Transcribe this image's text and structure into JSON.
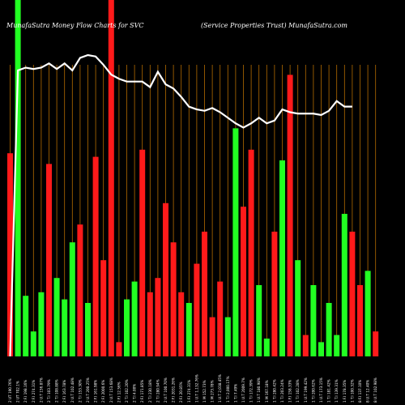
{
  "chart_data": {
    "type": "bar",
    "title_left": "MunafaSutra  Money Flow  Charts for SVC",
    "title_right": "(Service   Properties Trust) MunafaSutra.com",
    "colors": {
      "background": "#000000",
      "up": "#22ff22",
      "down": "#ff1a1a",
      "grid": "#b36b00",
      "line": "#ffffff"
    },
    "ylim": [
      0,
      100
    ],
    "values": [
      57,
      100,
      17,
      7,
      18,
      54,
      22,
      16,
      32,
      37,
      15,
      56,
      27,
      100,
      4,
      16,
      21,
      58,
      18,
      22,
      43,
      32,
      18,
      15,
      26,
      35,
      11,
      21,
      11,
      64,
      42,
      58,
      20,
      5,
      35,
      55,
      79,
      27,
      6,
      20,
      4,
      15,
      6,
      40,
      35,
      20,
      24,
      7
    ],
    "colors_per_bar": [
      "down",
      "up",
      "up",
      "up",
      "up",
      "down",
      "up",
      "up",
      "up",
      "down",
      "up",
      "down",
      "down",
      "down",
      "down",
      "up",
      "up",
      "down",
      "down",
      "down",
      "down",
      "down",
      "down",
      "up",
      "down",
      "down",
      "down",
      "down",
      "up",
      "up",
      "down",
      "down",
      "up",
      "up",
      "down",
      "up",
      "down",
      "up",
      "down",
      "up",
      "up",
      "up",
      "up",
      "up",
      "down",
      "down",
      "up",
      "down"
    ],
    "line": [
      0,
      89,
      91,
      90,
      91,
      94,
      90,
      94,
      89,
      98,
      100,
      99,
      93,
      86,
      83,
      81,
      81,
      81,
      77,
      88,
      79,
      76,
      70,
      63,
      61,
      60,
      62,
      59,
      55,
      51,
      48,
      51,
      55,
      51,
      53,
      61,
      59,
      58,
      58,
      58,
      57,
      60,
      67,
      63,
      63
    ],
    "x_ticks": [
      "2 UT 190.76%",
      "2 UT 702.1%",
      "2 F.I 198.16%",
      "2 F.I 274.31%",
      "2 U.T 156.87%",
      "2 T.I 103.79%",
      "2 T.I 108.88%",
      "2 F.I 163.78%",
      "2 U.T 102.48%",
      "2 T.I 153.30%",
      "2 U.T 200.25%",
      "2 F.I 161.98%",
      "2 F.I 2000.6%",
      "2 U.T 153.68%",
      "2 F.I 12.56%",
      "2 T.I 102.20%",
      "2 T.I 4.00%",
      "2 F.I 171.85%",
      "2 T.I 230.18%",
      "2 T.I 280.94%",
      "2 U.T 100.70%",
      "2 F.I 2031.26%",
      "2 F.I 20.85%",
      "1 F.I 274.31%",
      "1 U.T 1,132.76%",
      "1 M 152.73%",
      "1 M 273.78%",
      "1 U.T 2,038.45%",
      "1 T.I 2,000.17%",
      "1 T.I 7.49%",
      "1 U.T 2009.7%",
      "1 T.I 172.39%",
      "1 U.T 180.98%",
      "1 M 167.18%",
      "1 T.I 280.42%",
      "1 T.I 203.24%",
      "1 F.I 158.33%",
      "1 T.I 102.28%",
      "1 U.T 199.42%",
      "1 T.I 200.62%",
      "1 U.T 173.15%",
      "1 T.I 181.42%",
      "1 T.I 139.31%",
      "1 F.I 178.35%",
      "1 T.I 100.32%",
      "8 F.I 137.10%",
      "8 U.T 12.40%",
      "8 U.T 102.98%"
    ]
  }
}
